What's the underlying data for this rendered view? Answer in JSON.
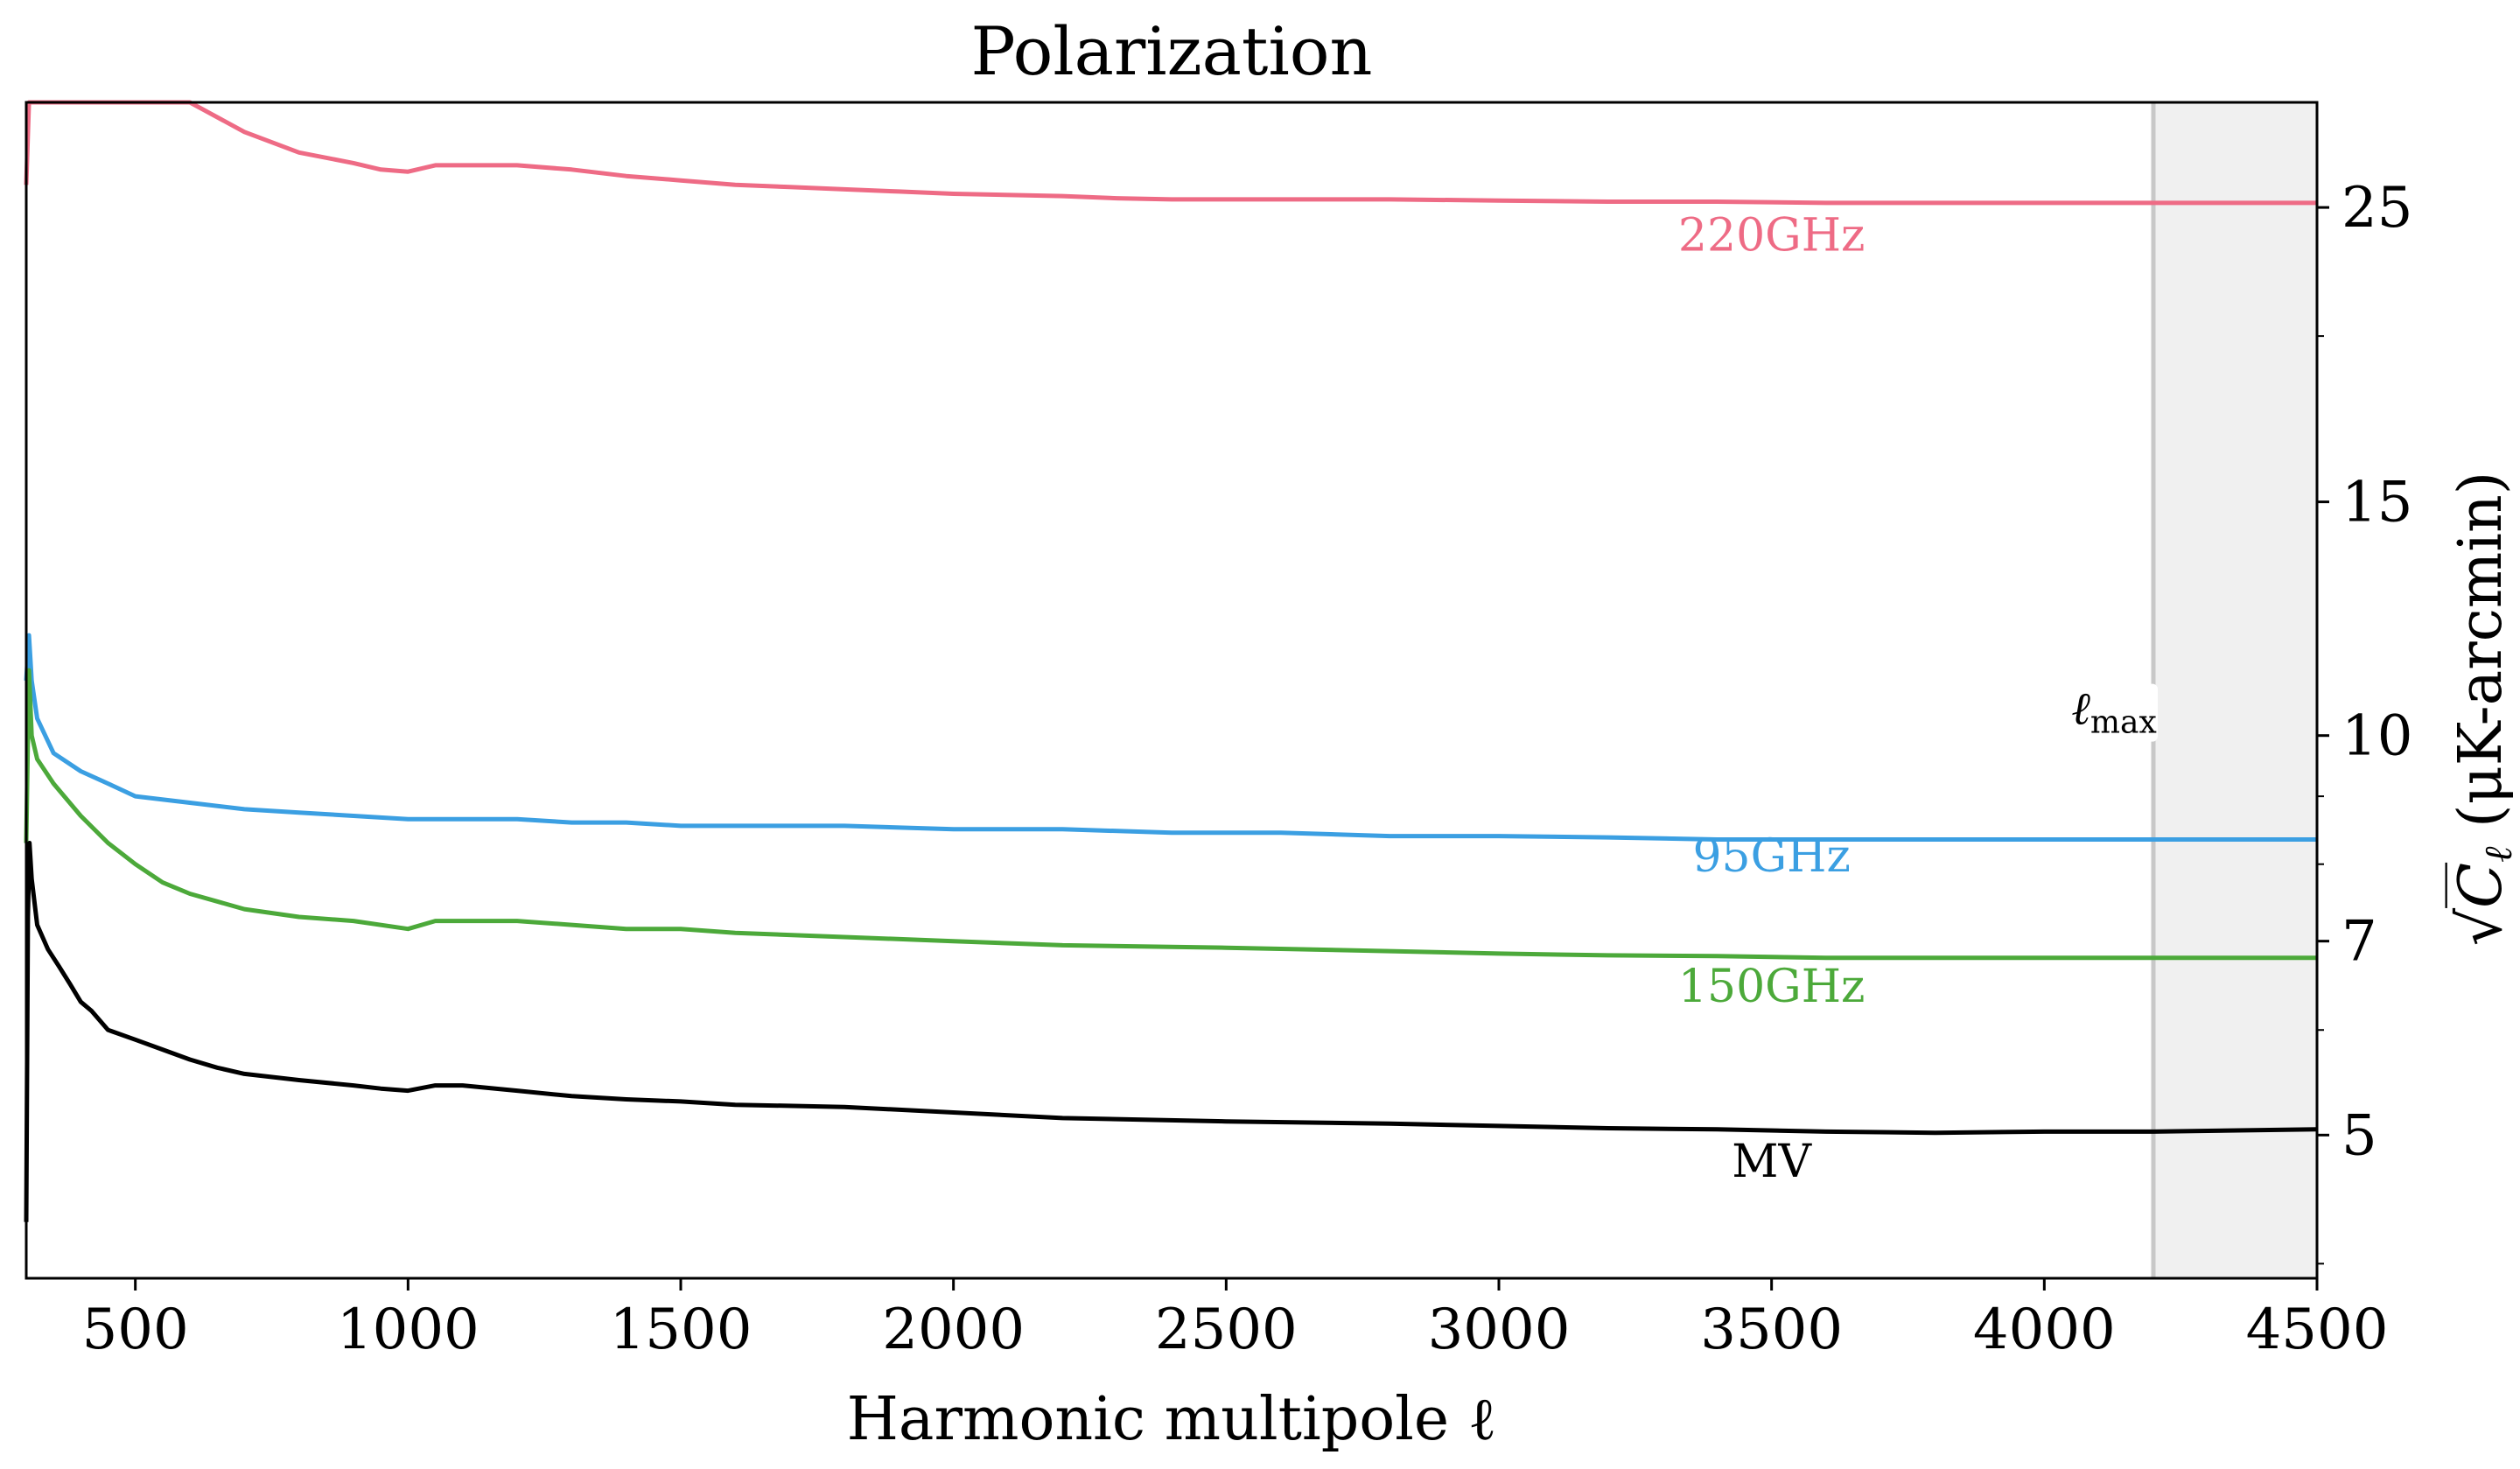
{
  "chart_data": {
    "type": "line",
    "title": "Polarization",
    "xlabel": "Harmonic multipole ℓ",
    "ylabel": "√C_ℓ (μK-arcmin)",
    "ylabel_parts": {
      "sqrt": "√",
      "c": "C",
      "sub": "ℓ",
      "rest": " (μK-arcmin)"
    },
    "xlim": [
      300,
      4500
    ],
    "ylim": [
      3.9,
      30
    ],
    "yscale": "log",
    "grid": false,
    "legend": "inline labels",
    "x_ticks": [
      500,
      1000,
      1500,
      2000,
      2500,
      3000,
      3500,
      4000,
      4500
    ],
    "x_tick_labels": [
      "500",
      "1000",
      "1500",
      "2000",
      "2500",
      "3000",
      "3500",
      "4000",
      "4500"
    ],
    "y_ticks": [
      5,
      7,
      10,
      15,
      25
    ],
    "y_tick_labels": [
      "5",
      "7",
      "10",
      "15",
      "25"
    ],
    "y_minor_ticks": [
      4,
      6,
      8,
      9,
      20
    ],
    "lmax": {
      "value": 4200,
      "label_main": "ℓ",
      "label_sub": "max",
      "shade_color": "#f0f0f0",
      "line_color": "#c8c8c8"
    },
    "series": [
      {
        "name": "220GHz",
        "color": "#ee6b85",
        "label_x": 3500,
        "label_y": 23.2,
        "x": [
          300,
          305,
          600,
          700,
          800,
          900,
          950,
          1000,
          1050,
          1100,
          1200,
          1300,
          1400,
          1500,
          1600,
          1700,
          1800,
          1900,
          2000,
          2200,
          2300,
          2400,
          2500,
          2600,
          2800,
          3000,
          3200,
          3400,
          3600,
          3800,
          4000,
          4200,
          4300,
          4500
        ],
        "y": [
          26,
          31,
          30,
          28.5,
          27.5,
          27,
          26.7,
          26.6,
          26.9,
          26.9,
          26.9,
          26.7,
          26.4,
          26.2,
          26.0,
          25.9,
          25.8,
          25.7,
          25.6,
          25.5,
          25.4,
          25.35,
          25.35,
          25.35,
          25.35,
          25.3,
          25.25,
          25.25,
          25.2,
          25.2,
          25.2,
          25.2,
          25.2,
          25.2
        ]
      },
      {
        "name": "95GHz",
        "color": "#3b9fe2",
        "label_x": 3500,
        "label_y": 7.9,
        "x": [
          300,
          305,
          310,
          320,
          350,
          400,
          450,
          500,
          600,
          700,
          800,
          900,
          1000,
          1100,
          1200,
          1300,
          1400,
          1500,
          1600,
          1800,
          2000,
          2200,
          2400,
          2600,
          2800,
          3000,
          3200,
          3400,
          3600,
          3800,
          4000,
          4200,
          4400,
          4500
        ],
        "y": [
          11.0,
          11.9,
          11.0,
          10.3,
          9.7,
          9.4,
          9.2,
          9.0,
          8.9,
          8.8,
          8.75,
          8.7,
          8.65,
          8.65,
          8.65,
          8.6,
          8.6,
          8.55,
          8.55,
          8.55,
          8.5,
          8.5,
          8.45,
          8.45,
          8.4,
          8.4,
          8.38,
          8.35,
          8.35,
          8.35,
          8.35,
          8.35,
          8.35,
          8.35
        ]
      },
      {
        "name": "150GHz",
        "color": "#4ca93a",
        "label_x": 3500,
        "label_y": 6.3,
        "x": [
          300,
          305,
          310,
          320,
          350,
          400,
          450,
          500,
          550,
          600,
          700,
          800,
          900,
          1000,
          1050,
          1100,
          1200,
          1300,
          1400,
          1500,
          1600,
          1800,
          2000,
          2200,
          2500,
          2800,
          3000,
          3200,
          3400,
          3600,
          3800,
          4000,
          4200,
          4500
        ],
        "y": [
          8.3,
          11.2,
          10.0,
          9.6,
          9.2,
          8.7,
          8.3,
          8.0,
          7.75,
          7.6,
          7.4,
          7.3,
          7.25,
          7.15,
          7.25,
          7.25,
          7.25,
          7.2,
          7.15,
          7.15,
          7.1,
          7.05,
          7.0,
          6.95,
          6.92,
          6.88,
          6.85,
          6.83,
          6.82,
          6.8,
          6.8,
          6.8,
          6.8,
          6.8
        ]
      },
      {
        "name": "MV",
        "color": "#000000",
        "label_x": 3500,
        "label_y": 4.65,
        "x": [
          300,
          303,
          306,
          310,
          320,
          340,
          360,
          380,
          400,
          420,
          450,
          500,
          550,
          600,
          650,
          700,
          800,
          900,
          950,
          1000,
          1050,
          1100,
          1200,
          1300,
          1400,
          1500,
          1600,
          1800,
          2000,
          2200,
          2500,
          2800,
          3000,
          3200,
          3400,
          3600,
          3800,
          4000,
          4200,
          4500
        ],
        "y": [
          4.3,
          7.3,
          8.3,
          7.8,
          7.2,
          6.9,
          6.7,
          6.5,
          6.3,
          6.2,
          6.0,
          5.9,
          5.8,
          5.7,
          5.62,
          5.56,
          5.5,
          5.45,
          5.42,
          5.4,
          5.45,
          5.45,
          5.4,
          5.35,
          5.32,
          5.3,
          5.27,
          5.25,
          5.2,
          5.15,
          5.12,
          5.1,
          5.08,
          5.06,
          5.05,
          5.03,
          5.02,
          5.03,
          5.03,
          5.05
        ]
      }
    ]
  }
}
